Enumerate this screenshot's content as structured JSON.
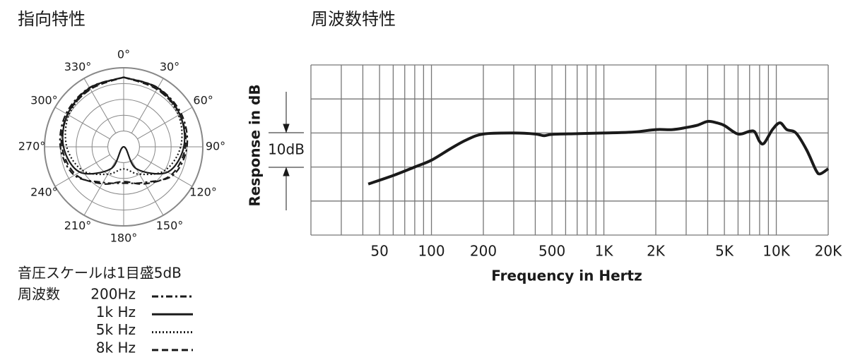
{
  "chart_data": [
    {
      "type": "polar",
      "title": "指向特性",
      "theta": [
        0,
        30,
        60,
        90,
        120,
        150,
        180,
        210,
        240,
        270,
        300,
        330,
        360
      ],
      "thetaticks": [
        {
          "value": 0,
          "label": "0°"
        },
        {
          "value": 30,
          "label": "30°"
        },
        {
          "value": 60,
          "label": "60°"
        },
        {
          "value": 90,
          "label": "90°"
        },
        {
          "value": 120,
          "label": "120°"
        },
        {
          "value": 150,
          "label": "150°"
        },
        {
          "value": 180,
          "label": "180°"
        },
        {
          "value": 210,
          "label": "210°"
        },
        {
          "value": 240,
          "label": "240°"
        },
        {
          "value": 270,
          "label": "270°"
        },
        {
          "value": 300,
          "label": "300°"
        },
        {
          "value": 330,
          "label": "330°"
        }
      ],
      "rlim": [
        -25,
        0
      ],
      "rticks": [
        -20,
        -15,
        -10,
        -5,
        0
      ],
      "scale_note": "音圧スケールは1目盛5dB",
      "legend_title": "周波数",
      "series": [
        {
          "name": "200Hz",
          "color": "#1a1a1a",
          "dash": "dashdot",
          "values": [
            -3,
            -3.4,
            -4,
            -5,
            -7,
            -12,
            -13.5,
            -12,
            -7,
            -5,
            -4,
            -3.4,
            -3
          ]
        },
        {
          "name": "1k Hz",
          "color": "#1a1a1a",
          "dash": "solid",
          "values": [
            -3,
            -3.5,
            -4.5,
            -6,
            -9,
            -17,
            -25,
            -17,
            -9,
            -6,
            -4.5,
            -3.5,
            -3
          ]
        },
        {
          "name": "5k Hz",
          "color": "#1a1a1a",
          "dash": "dotted",
          "values": [
            -3,
            -3.8,
            -5,
            -7,
            -10,
            -15,
            -18,
            -15,
            -10,
            -7,
            -5,
            -3.8,
            -3
          ]
        },
        {
          "name": "8k Hz",
          "color": "#1a1a1a",
          "dash": "dashed",
          "values": [
            -3,
            -4,
            -4.5,
            -5.5,
            -7.5,
            -11.5,
            -14,
            -11.5,
            -7.5,
            -5.5,
            -4.5,
            -4,
            -3
          ]
        }
      ]
    },
    {
      "type": "line",
      "title": "周波数特性",
      "xlabel": "Frequency in Hertz",
      "ylabel": "Response in dB",
      "annotation": "10dB",
      "log_x": true,
      "xlim": [
        20,
        20000
      ],
      "ylim": [
        -30,
        20
      ],
      "xgrid": [
        20,
        30,
        40,
        50,
        60,
        70,
        80,
        90,
        100,
        200,
        300,
        400,
        500,
        600,
        700,
        800,
        900,
        1000,
        2000,
        3000,
        4000,
        5000,
        6000,
        7000,
        8000,
        9000,
        10000,
        20000
      ],
      "ygrid": [
        -30,
        -20,
        -10,
        0,
        10,
        20
      ],
      "xticks": [
        50,
        100,
        200,
        500,
        {
          "value": 1000,
          "label": "1K"
        },
        {
          "value": 2000,
          "label": "2K"
        },
        {
          "value": 5000,
          "label": "5K"
        },
        {
          "value": 10000,
          "label": "10K"
        },
        {
          "value": 20000,
          "label": "20K"
        }
      ],
      "x": [
        43,
        60,
        80,
        100,
        130,
        160,
        200,
        300,
        400,
        450,
        500,
        700,
        1000,
        1500,
        2000,
        2500,
        3000,
        3500,
        4000,
        4500,
        5000,
        6000,
        7000,
        7500,
        8000,
        8500,
        9500,
        10500,
        11500,
        13000,
        15000,
        17000,
        18000,
        20000
      ],
      "color": "#1a1a1a",
      "values": [
        -15,
        -12.5,
        -10,
        -8,
        -4.5,
        -2,
        -0.3,
        0,
        -0.3,
        -0.8,
        -0.4,
        -0.2,
        0,
        0.3,
        1,
        1,
        1.6,
        2.3,
        3.4,
        3,
        2.2,
        -0.3,
        0.5,
        0.3,
        -2.5,
        -3,
        1,
        3,
        1,
        0,
        -5,
        -11,
        -12,
        -10.5
      ]
    }
  ]
}
